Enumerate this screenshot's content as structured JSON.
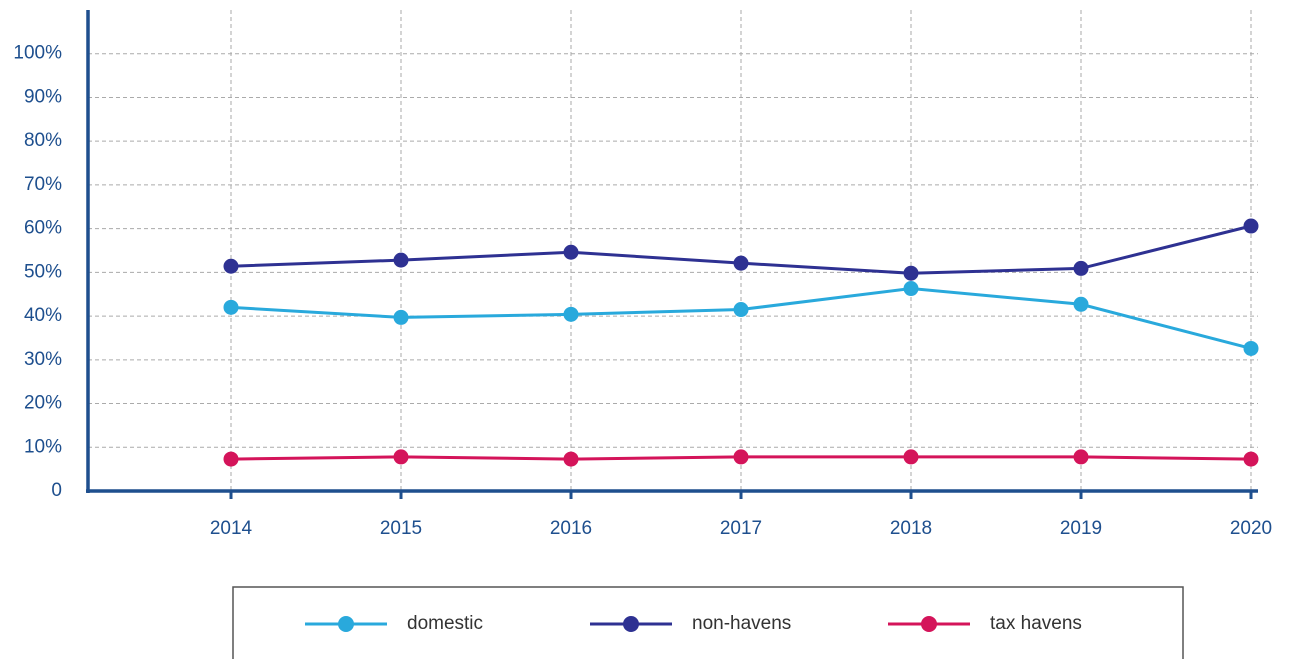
{
  "chart_data": {
    "type": "line",
    "categories": [
      "2014",
      "2015",
      "2016",
      "2017",
      "2018",
      "2019",
      "2020"
    ],
    "series": [
      {
        "name": "domestic",
        "color": "#29a9dc",
        "values": [
          42.0,
          39.7,
          40.4,
          41.5,
          46.3,
          42.7,
          32.6
        ]
      },
      {
        "name": "non-havens",
        "color": "#2e3192",
        "values": [
          51.4,
          52.8,
          54.6,
          52.1,
          49.8,
          50.9,
          60.6
        ]
      },
      {
        "name": "tax havens",
        "color": "#d4145a",
        "values": [
          7.3,
          7.8,
          7.3,
          7.8,
          7.8,
          7.8,
          7.3
        ]
      }
    ],
    "ylim": [
      0,
      110
    ],
    "yticks": [
      0,
      {
        "value": 10,
        "label": "10%"
      },
      {
        "value": 20,
        "label": "20%"
      },
      {
        "value": 30,
        "label": "30%"
      },
      {
        "value": 40,
        "label": "40%"
      },
      {
        "value": 50,
        "label": "50%"
      },
      {
        "value": 60,
        "label": "60%"
      },
      {
        "value": 70,
        "label": "70%"
      },
      {
        "value": 80,
        "label": "80%"
      },
      {
        "value": 90,
        "label": "90%"
      },
      {
        "value": 100,
        "label": "100%"
      }
    ],
    "grid": true,
    "legend": "bottom"
  }
}
